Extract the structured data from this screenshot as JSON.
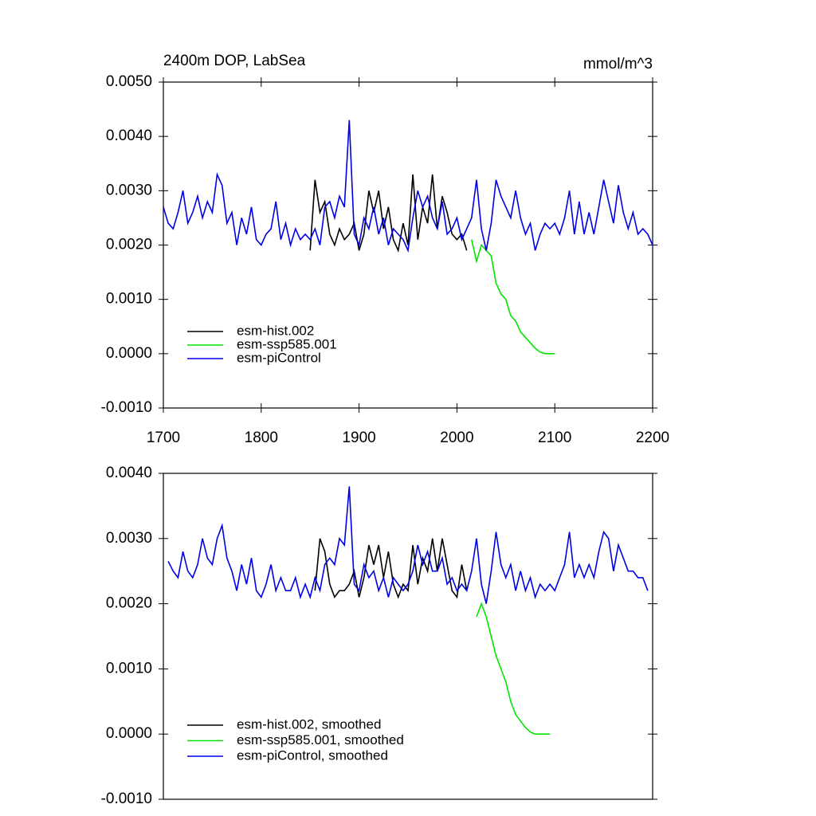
{
  "chart_data": [
    {
      "type": "line",
      "title": "2400m DOP, LabSea",
      "units": "mmol/m^3",
      "xlim": [
        1700,
        2200
      ],
      "xticks": [
        1700,
        1800,
        1900,
        2000,
        2100,
        2200
      ],
      "ylim": [
        -0.001,
        0.005
      ],
      "yticks": [
        {
          "value": -0.001,
          "label": "-0.0010"
        },
        {
          "value": 0,
          "label": "0.0000"
        },
        {
          "value": 0.001,
          "label": "0.0010"
        },
        {
          "value": 0.002,
          "label": "0.0020"
        },
        {
          "value": 0.003,
          "label": "0.0030"
        },
        {
          "value": 0.004,
          "label": "0.0040"
        },
        {
          "value": 0.005,
          "label": "0.0050"
        }
      ],
      "legend": "lower-left",
      "series": [
        {
          "name": "esm-hist.002",
          "color": "#000000",
          "x": [
            1850,
            1855,
            1860,
            1865,
            1870,
            1875,
            1880,
            1885,
            1890,
            1895,
            1900,
            1905,
            1910,
            1915,
            1920,
            1925,
            1930,
            1935,
            1940,
            1945,
            1950,
            1955,
            1960,
            1965,
            1970,
            1975,
            1980,
            1985,
            1990,
            1995,
            2000,
            2005,
            2010
          ],
          "values": [
            0.0019,
            0.0032,
            0.0026,
            0.0028,
            0.0022,
            0.002,
            0.0023,
            0.0021,
            0.0022,
            0.0024,
            0.0019,
            0.0022,
            0.003,
            0.0026,
            0.003,
            0.0023,
            0.0027,
            0.0021,
            0.0019,
            0.0024,
            0.002,
            0.0033,
            0.0021,
            0.0027,
            0.0024,
            0.0033,
            0.0023,
            0.0029,
            0.0026,
            0.0022,
            0.0021,
            0.0022,
            0.0019
          ]
        },
        {
          "name": "esm-ssp585.001",
          "color": "#00e600",
          "x": [
            2015,
            2020,
            2025,
            2030,
            2035,
            2040,
            2045,
            2050,
            2055,
            2060,
            2065,
            2070,
            2075,
            2080,
            2085,
            2090,
            2095,
            2100
          ],
          "values": [
            0.0021,
            0.0017,
            0.002,
            0.0019,
            0.0018,
            0.0013,
            0.0011,
            0.001,
            0.0007,
            0.0006,
            0.0004,
            0.0003,
            0.0002,
            0.0001,
            3e-05,
            0,
            0,
            0
          ]
        },
        {
          "name": "esm-piControl",
          "color": "#0000e6",
          "x": [
            1700,
            1705,
            1710,
            1715,
            1720,
            1725,
            1730,
            1735,
            1740,
            1745,
            1750,
            1755,
            1760,
            1765,
            1770,
            1775,
            1780,
            1785,
            1790,
            1795,
            1800,
            1805,
            1810,
            1815,
            1820,
            1825,
            1830,
            1835,
            1840,
            1845,
            1850,
            1855,
            1860,
            1865,
            1870,
            1875,
            1880,
            1885,
            1890,
            1895,
            1900,
            1905,
            1910,
            1915,
            1920,
            1925,
            1930,
            1935,
            1940,
            1945,
            1950,
            1955,
            1960,
            1965,
            1970,
            1975,
            1980,
            1985,
            1990,
            1995,
            2000,
            2005,
            2010,
            2015,
            2020,
            2025,
            2030,
            2035,
            2040,
            2045,
            2050,
            2055,
            2060,
            2065,
            2070,
            2075,
            2080,
            2085,
            2090,
            2095,
            2100,
            2105,
            2110,
            2115,
            2120,
            2125,
            2130,
            2135,
            2140,
            2145,
            2150,
            2155,
            2160,
            2165,
            2170,
            2175,
            2180,
            2185,
            2190,
            2195,
            2200
          ],
          "values": [
            0.0027,
            0.0024,
            0.0023,
            0.0026,
            0.003,
            0.0024,
            0.0026,
            0.0029,
            0.0025,
            0.0028,
            0.0026,
            0.0033,
            0.0031,
            0.0024,
            0.0026,
            0.002,
            0.0025,
            0.0022,
            0.0027,
            0.0021,
            0.002,
            0.0022,
            0.0023,
            0.0028,
            0.0021,
            0.0024,
            0.002,
            0.0023,
            0.0021,
            0.0022,
            0.0021,
            0.0023,
            0.002,
            0.0027,
            0.0028,
            0.0025,
            0.0029,
            0.0027,
            0.0043,
            0.0022,
            0.002,
            0.0025,
            0.0023,
            0.0027,
            0.0022,
            0.0025,
            0.002,
            0.0023,
            0.0022,
            0.0021,
            0.0019,
            0.0025,
            0.003,
            0.0027,
            0.0029,
            0.0025,
            0.0023,
            0.0028,
            0.0022,
            0.0023,
            0.0025,
            0.0021,
            0.0023,
            0.0025,
            0.0032,
            0.0023,
            0.0019,
            0.0024,
            0.0032,
            0.0029,
            0.0027,
            0.0025,
            0.003,
            0.0025,
            0.0022,
            0.0024,
            0.0019,
            0.0022,
            0.0024,
            0.0023,
            0.0024,
            0.0022,
            0.0025,
            0.003,
            0.0022,
            0.0028,
            0.0022,
            0.0026,
            0.0022,
            0.0027,
            0.0032,
            0.0028,
            0.0024,
            0.0031,
            0.0026,
            0.0023,
            0.0026,
            0.0022,
            0.0023,
            0.0022,
            0.002
          ]
        }
      ]
    },
    {
      "type": "line",
      "xlim": [
        1700,
        2200
      ],
      "ylim": [
        -0.001,
        0.004
      ],
      "yticks": [
        {
          "value": -0.001,
          "label": "-0.0010"
        },
        {
          "value": 0,
          "label": "0.0000"
        },
        {
          "value": 0.001,
          "label": "0.0010"
        },
        {
          "value": 0.002,
          "label": "0.0020"
        },
        {
          "value": 0.003,
          "label": "0.0030"
        },
        {
          "value": 0.004,
          "label": "0.0040"
        }
      ],
      "legend": "lower-left",
      "series": [
        {
          "name": "esm-hist.002, smoothed",
          "color": "#000000",
          "x": [
            1855,
            1860,
            1865,
            1870,
            1875,
            1880,
            1885,
            1890,
            1895,
            1900,
            1905,
            1910,
            1915,
            1920,
            1925,
            1930,
            1935,
            1940,
            1945,
            1950,
            1955,
            1960,
            1965,
            1970,
            1975,
            1980,
            1985,
            1990,
            1995,
            2000,
            2005,
            2010
          ],
          "values": [
            0.0022,
            0.003,
            0.0028,
            0.0023,
            0.0021,
            0.0022,
            0.0022,
            0.0023,
            0.0025,
            0.0021,
            0.0024,
            0.0029,
            0.0026,
            0.0029,
            0.0024,
            0.0028,
            0.0023,
            0.0021,
            0.0023,
            0.0022,
            0.0029,
            0.0023,
            0.0027,
            0.0025,
            0.003,
            0.0025,
            0.003,
            0.0026,
            0.0022,
            0.0021,
            0.0026,
            0.0022
          ]
        },
        {
          "name": "esm-ssp585.001, smoothed",
          "color": "#00e600",
          "x": [
            2020,
            2025,
            2030,
            2035,
            2040,
            2045,
            2050,
            2055,
            2060,
            2065,
            2070,
            2075,
            2080,
            2085,
            2090,
            2095
          ],
          "values": [
            0.0018,
            0.002,
            0.0018,
            0.0015,
            0.0012,
            0.001,
            0.0008,
            0.0005,
            0.0003,
            0.0002,
            0.0001,
            3e-05,
            0,
            0,
            0,
            0
          ]
        },
        {
          "name": "esm-piControl, smoothed",
          "color": "#0000e6",
          "x": [
            1705,
            1710,
            1715,
            1720,
            1725,
            1730,
            1735,
            1740,
            1745,
            1750,
            1755,
            1760,
            1765,
            1770,
            1775,
            1780,
            1785,
            1790,
            1795,
            1800,
            1805,
            1810,
            1815,
            1820,
            1825,
            1830,
            1835,
            1840,
            1845,
            1850,
            1855,
            1860,
            1865,
            1870,
            1875,
            1880,
            1885,
            1890,
            1895,
            1900,
            1905,
            1910,
            1915,
            1920,
            1925,
            1930,
            1935,
            1940,
            1945,
            1950,
            1955,
            1960,
            1965,
            1970,
            1975,
            1980,
            1985,
            1990,
            1995,
            2000,
            2005,
            2010,
            2015,
            2020,
            2025,
            2030,
            2035,
            2040,
            2045,
            2050,
            2055,
            2060,
            2065,
            2070,
            2075,
            2080,
            2085,
            2090,
            2095,
            2100,
            2105,
            2110,
            2115,
            2120,
            2125,
            2130,
            2135,
            2140,
            2145,
            2150,
            2155,
            2160,
            2165,
            2170,
            2175,
            2180,
            2185,
            2190,
            2195
          ],
          "values": [
            0.00265,
            0.0025,
            0.0024,
            0.0028,
            0.0025,
            0.0024,
            0.0026,
            0.003,
            0.0027,
            0.0026,
            0.003,
            0.0032,
            0.0027,
            0.0025,
            0.0022,
            0.0026,
            0.0023,
            0.0027,
            0.0022,
            0.0021,
            0.0023,
            0.0026,
            0.0022,
            0.0024,
            0.0022,
            0.0022,
            0.0024,
            0.0021,
            0.0023,
            0.0021,
            0.0024,
            0.0022,
            0.0026,
            0.0027,
            0.0026,
            0.003,
            0.0029,
            0.0038,
            0.0023,
            0.0022,
            0.0026,
            0.0024,
            0.0025,
            0.0022,
            0.0024,
            0.0021,
            0.0024,
            0.0023,
            0.0022,
            0.0023,
            0.0025,
            0.0029,
            0.0026,
            0.0028,
            0.0025,
            0.0025,
            0.0027,
            0.0023,
            0.0024,
            0.0022,
            0.0023,
            0.0022,
            0.0025,
            0.003,
            0.0023,
            0.002,
            0.0025,
            0.0031,
            0.0026,
            0.0024,
            0.0026,
            0.0022,
            0.0025,
            0.0022,
            0.0024,
            0.0021,
            0.0023,
            0.0022,
            0.0023,
            0.0022,
            0.0024,
            0.0026,
            0.0031,
            0.0024,
            0.0026,
            0.0024,
            0.0026,
            0.0024,
            0.0028,
            0.0031,
            0.003,
            0.0025,
            0.0029,
            0.0027,
            0.0025,
            0.0025,
            0.0024,
            0.0024,
            0.0022
          ]
        }
      ]
    }
  ]
}
